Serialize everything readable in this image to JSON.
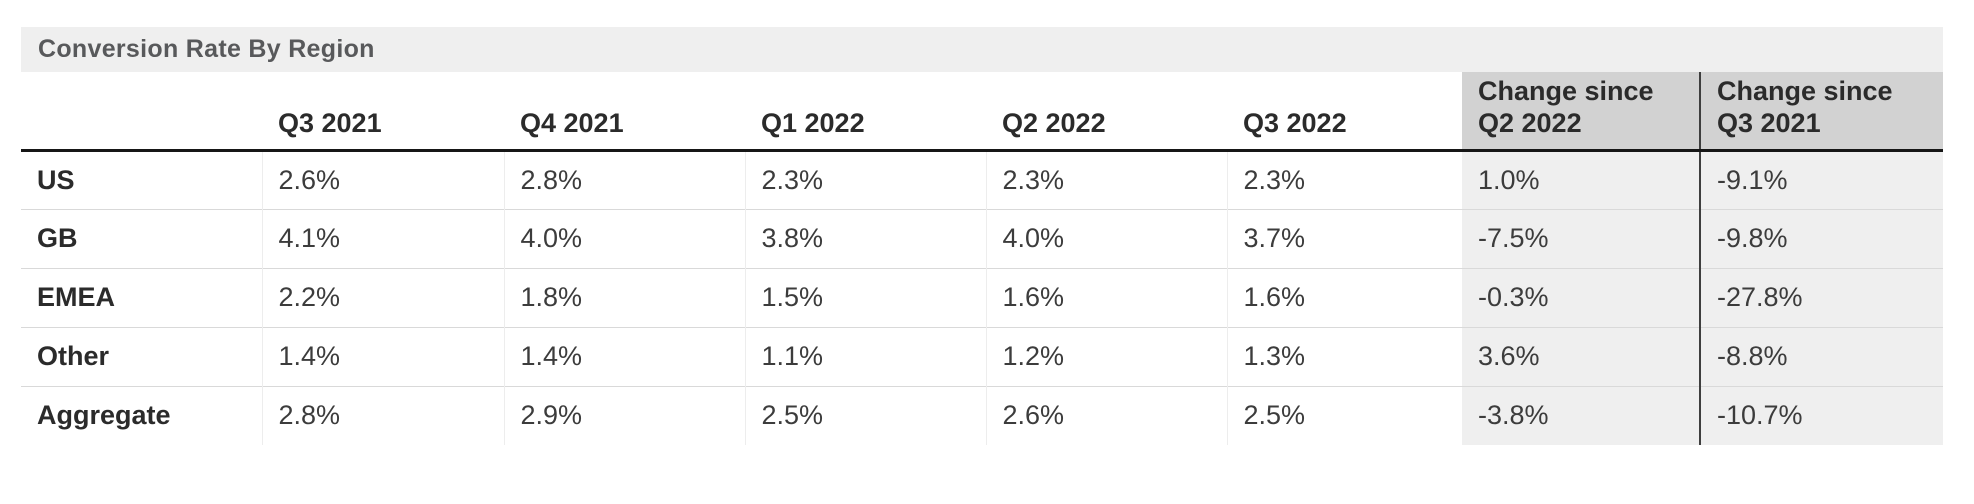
{
  "title": "Conversion Rate By Region",
  "colors": {
    "title_band_bg": "#efefef",
    "title_text": "#58595b",
    "change_header_bg": "#d2d2d2",
    "change_body_bg": "#efefef",
    "header_rule": "#161616",
    "row_separator": "#d9d9d9",
    "change_divider": "#3e3e3e",
    "body_text": "#3c3c3c"
  },
  "header": {
    "quarters": [
      "Q3 2021",
      "Q4 2021",
      "Q1 2022",
      "Q2 2022",
      "Q3 2022"
    ],
    "change_cols": [
      {
        "line1": "Change since",
        "line2": "Q2 2022"
      },
      {
        "line1": "Change since",
        "line2": "Q3 2021"
      }
    ]
  },
  "chart_data": {
    "type": "table",
    "title": "Conversion Rate By Region",
    "columns": [
      "",
      "Q3 2021",
      "Q4 2021",
      "Q1 2022",
      "Q2 2022",
      "Q3 2022",
      "Change since Q2 2022",
      "Change since Q3 2021"
    ],
    "rows": [
      {
        "label": "US",
        "cells": [
          "2.6%",
          "2.8%",
          "2.3%",
          "2.3%",
          "2.3%",
          "1.0%",
          "-9.1%"
        ]
      },
      {
        "label": "GB",
        "cells": [
          "4.1%",
          "4.0%",
          "3.8%",
          "4.0%",
          "3.7%",
          "-7.5%",
          "-9.8%"
        ]
      },
      {
        "label": "EMEA",
        "cells": [
          "2.2%",
          "1.8%",
          "1.5%",
          "1.6%",
          "1.6%",
          "-0.3%",
          "-27.8%"
        ]
      },
      {
        "label": "Other",
        "cells": [
          "1.4%",
          "1.4%",
          "1.1%",
          "1.2%",
          "1.3%",
          "3.6%",
          "-8.8%"
        ]
      },
      {
        "label": "Aggregate",
        "cells": [
          "2.8%",
          "2.9%",
          "2.5%",
          "2.6%",
          "2.5%",
          "-3.8%",
          "-10.7%"
        ]
      }
    ]
  }
}
